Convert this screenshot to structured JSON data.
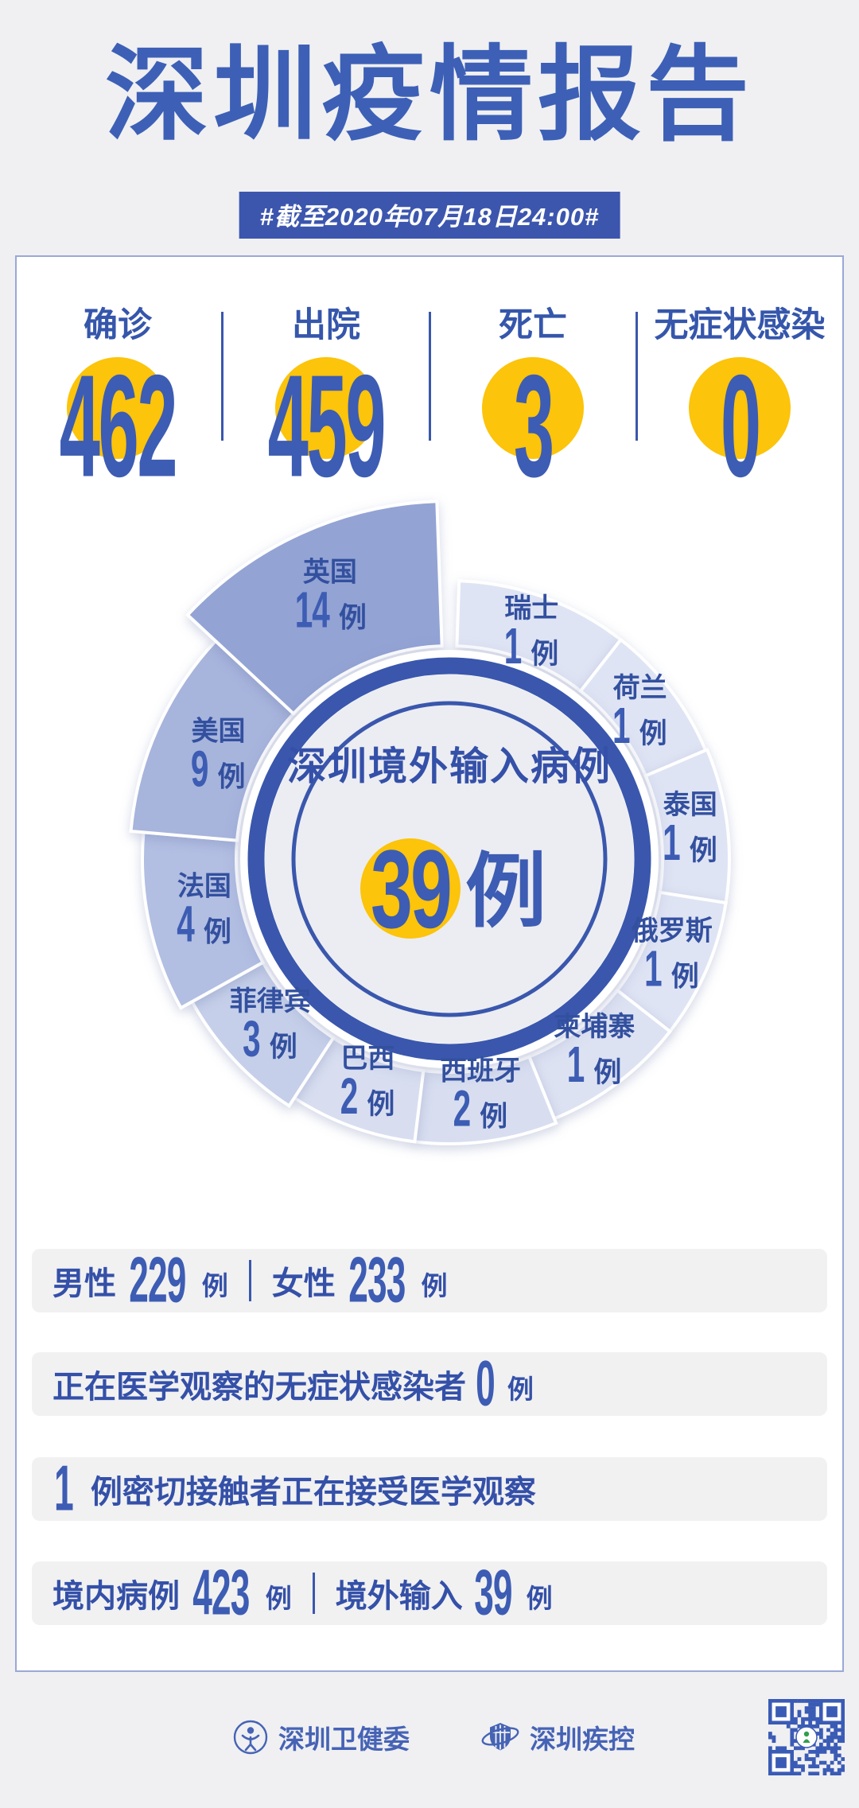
{
  "header": {
    "title": "深圳疫情报告",
    "banner": "#截至2020年07月18日24:00#"
  },
  "stats": [
    {
      "label": "确诊",
      "value": "462"
    },
    {
      "label": "出院",
      "value": "459"
    },
    {
      "label": "死亡",
      "value": "3"
    },
    {
      "label": "无症状感染",
      "value": "0"
    }
  ],
  "chart_data": {
    "type": "pie",
    "title": "深圳境外输入病例",
    "total": 39,
    "unit": "例",
    "center_label": {
      "number": "39",
      "unit": "例"
    },
    "segments": [
      {
        "country": "瑞士",
        "cases": 1
      },
      {
        "country": "荷兰",
        "cases": 1
      },
      {
        "country": "泰国",
        "cases": 1
      },
      {
        "country": "俄罗斯",
        "cases": 1
      },
      {
        "country": "柬埔寨",
        "cases": 1
      },
      {
        "country": "西班牙",
        "cases": 2
      },
      {
        "country": "巴西",
        "cases": 2
      },
      {
        "country": "菲律宾",
        "cases": 3
      },
      {
        "country": "法国",
        "cases": 4
      },
      {
        "country": "美国",
        "cases": 9
      },
      {
        "country": "英国",
        "cases": 14
      }
    ],
    "display": {
      "clockwise_from_top": true,
      "angles": [
        [
          2,
          38
        ],
        [
          38,
          67
        ],
        [
          67,
          99
        ],
        [
          99,
          128
        ],
        [
          128,
          158
        ],
        [
          158,
          187
        ],
        [
          187,
          213
        ],
        [
          213,
          241
        ],
        [
          241,
          275
        ],
        [
          275,
          313
        ],
        [
          313,
          358
        ]
      ],
      "outer_radii": [
        350,
        350,
        352,
        352,
        352,
        358,
        358,
        370,
        386,
        402,
        450
      ],
      "label_radii": [
        302,
        302,
        305,
        305,
        303,
        300,
        300,
        308,
        315,
        318,
        362
      ],
      "colors": [
        "#dfe4f4",
        "#dfe4f4",
        "#dfe4f4",
        "#dfe4f4",
        "#dde2f2",
        "#d8def0",
        "#d8def0",
        "#c5cfe9",
        "#b2bee2",
        "#a7b4dc",
        "#93a3d4"
      ]
    }
  },
  "rows": {
    "gender": {
      "male_label": "男性",
      "male_value": "229",
      "female_label": "女性",
      "female_value": "233",
      "unit": "例"
    },
    "observation": {
      "label": "正在医学观察的无症状感染者",
      "value": "0",
      "unit": "例"
    },
    "close_contacts": {
      "value": "1",
      "label": "例密切接触者正在接受医学观察"
    },
    "origin": {
      "domestic_label": "境内病例",
      "domestic_value": "423",
      "imported_label": "境外输入",
      "imported_value": "39",
      "unit": "例"
    }
  },
  "footer": {
    "org1": "深圳卫健委",
    "org2": "深圳疾控"
  },
  "colors": {
    "primary_blue": "#3a57ad",
    "text_blue": "#3450a8",
    "number_blue": "#3d5cb3",
    "title_blue": "#3d60b6",
    "accent_yellow": "#fcc40a",
    "page_bg": "#f0f0f2",
    "strip_bg": "#f1f1f2",
    "card_border": "#9aa8d6"
  }
}
